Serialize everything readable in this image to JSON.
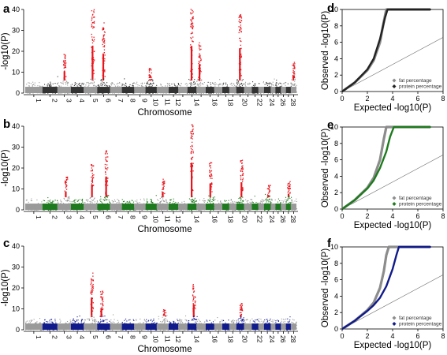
{
  "chart_data": [
    {
      "type": "scatter",
      "subtype": "manhattan",
      "panel": "a",
      "xlabel": "Chromosome",
      "ylabel": "-log10(P)",
      "ylim": [
        0,
        40
      ],
      "yticks": [
        0,
        10,
        20,
        30,
        40
      ],
      "chromosome_tick_labels": [
        "1",
        "2",
        "3",
        "4",
        "5",
        "6",
        "7",
        "8",
        "9",
        "10",
        "11",
        "12",
        "14",
        "16",
        "18",
        "20",
        "22",
        "24",
        "26",
        "28"
      ],
      "colors": {
        "odd": "#9a9a9a",
        "even": "#333333",
        "significant": "#e8141c"
      },
      "peaks": [
        {
          "chromosome": 3,
          "max": 19
        },
        {
          "chromosome": 5,
          "max": 41
        },
        {
          "chromosome": 6,
          "max": 34
        },
        {
          "chromosome": 10,
          "max": 12
        },
        {
          "chromosome": 14,
          "max": 41
        },
        {
          "chromosome": 15,
          "max": 25
        },
        {
          "chromosome": 20,
          "max": 39
        },
        {
          "chromosome": 29,
          "max": 15
        }
      ]
    },
    {
      "type": "scatter",
      "subtype": "manhattan",
      "panel": "b",
      "xlabel": "Chromosome",
      "ylabel": "-log10(P)",
      "ylim": [
        0,
        40
      ],
      "yticks": [
        0,
        10,
        20,
        30,
        40
      ],
      "chromosome_tick_labels": [
        "1",
        "2",
        "3",
        "4",
        "5",
        "6",
        "7",
        "8",
        "9",
        "10",
        "11",
        "12",
        "14",
        "16",
        "18",
        "20",
        "22",
        "24",
        "26",
        "28"
      ],
      "colors": {
        "odd": "#9a9a9a",
        "even": "#1e7a1e",
        "significant": "#e8141c"
      },
      "peaks": [
        {
          "chromosome": 3,
          "max": 16
        },
        {
          "chromosome": 5,
          "max": 22
        },
        {
          "chromosome": 6,
          "max": 29
        },
        {
          "chromosome": 11,
          "max": 15
        },
        {
          "chromosome": 14,
          "max": 41
        },
        {
          "chromosome": 16,
          "max": 23
        },
        {
          "chromosome": 20,
          "max": 24
        },
        {
          "chromosome": 24,
          "max": 12
        },
        {
          "chromosome": 28,
          "max": 14
        }
      ]
    },
    {
      "type": "scatter",
      "subtype": "manhattan",
      "panel": "c",
      "xlabel": "Chromosome",
      "ylabel": "-log10(P)",
      "ylim": [
        0,
        40
      ],
      "yticks": [
        0,
        10,
        20,
        30,
        40
      ],
      "chromosome_tick_labels": [
        "1",
        "2",
        "3",
        "4",
        "5",
        "6",
        "7",
        "8",
        "9",
        "10",
        "11",
        "12",
        "14",
        "16",
        "18",
        "20",
        "22",
        "24",
        "26",
        "28"
      ],
      "colors": {
        "odd": "#9a9a9a",
        "even": "#101a8a",
        "significant": "#e8141c"
      },
      "peaks": [
        {
          "chromosome": 5,
          "max": 28
        },
        {
          "chromosome": 6,
          "max": 19
        },
        {
          "chromosome": 11,
          "max": 10
        },
        {
          "chromosome": 14,
          "max": 22
        },
        {
          "chromosome": 20,
          "max": 13
        }
      ]
    },
    {
      "type": "line",
      "subtype": "qq",
      "panel": "d",
      "xlabel": "Expected -log10(P)",
      "ylabel": "Observed -log10(P)",
      "xlim": [
        0,
        8
      ],
      "ylim": [
        0,
        10
      ],
      "xticks": [
        0,
        2,
        4,
        6,
        8
      ],
      "yticks": [
        0,
        2,
        4,
        6,
        8,
        10
      ],
      "series": [
        {
          "name": "fat percentage",
          "color": "#8c8c8c",
          "x": [
            0,
            1,
            2,
            2.5,
            3,
            3.3,
            3.5,
            7
          ],
          "y": [
            0,
            1.1,
            2.6,
            3.8,
            6,
            8.5,
            10,
            10
          ]
        },
        {
          "name": "protein percentage",
          "color": "#222222",
          "x": [
            0,
            1,
            2,
            2.5,
            3,
            3.4,
            3.6,
            7
          ],
          "y": [
            0,
            1.1,
            2.7,
            4,
            6.4,
            9,
            10,
            10
          ]
        }
      ],
      "legend": [
        "fat percentage",
        "protein percentage"
      ]
    },
    {
      "type": "line",
      "subtype": "qq",
      "panel": "e",
      "xlabel": "Expected -log10(P)",
      "ylabel": "Observed -log10(P)",
      "xlim": [
        0,
        8
      ],
      "ylim": [
        0,
        10
      ],
      "xticks": [
        0,
        2,
        4,
        6,
        8
      ],
      "yticks": [
        0,
        2,
        4,
        6,
        8,
        10
      ],
      "series": [
        {
          "name": "fat percentage",
          "color": "#8c8c8c",
          "x": [
            0,
            1,
            2,
            2.5,
            3,
            3.3,
            3.5,
            7
          ],
          "y": [
            0,
            1.1,
            2.6,
            3.8,
            6,
            8.5,
            10,
            10
          ]
        },
        {
          "name": "protein percentage",
          "color": "#1e7a1e",
          "x": [
            0,
            1,
            2,
            2.5,
            3,
            3.5,
            3.8,
            4.1,
            7
          ],
          "y": [
            0,
            1.1,
            2.5,
            3.5,
            5,
            7,
            8.8,
            10,
            10
          ]
        }
      ],
      "legend": [
        "fat percentage",
        "protein percentage"
      ]
    },
    {
      "type": "line",
      "subtype": "qq",
      "panel": "f",
      "xlabel": "Expected -log10(P)",
      "ylabel": "Observed -log10(P)",
      "xlim": [
        0,
        8
      ],
      "ylim": [
        0,
        10
      ],
      "xticks": [
        0,
        2,
        4,
        6,
        8
      ],
      "yticks": [
        0,
        2,
        4,
        6,
        8,
        10
      ],
      "series": [
        {
          "name": "fat percentage",
          "color": "#8c8c8c",
          "x": [
            0,
            1,
            2,
            2.5,
            3,
            3.3,
            3.5,
            3.7,
            7
          ],
          "y": [
            0,
            1,
            2.3,
            3.2,
            5,
            7,
            9,
            10,
            10
          ]
        },
        {
          "name": "protein percentage",
          "color": "#101a8a",
          "x": [
            0,
            1,
            2,
            2.5,
            3,
            3.5,
            4,
            4.3,
            4.5,
            7
          ],
          "y": [
            0,
            1,
            2.2,
            2.9,
            3.8,
            5.2,
            7.3,
            9,
            10,
            10
          ]
        }
      ],
      "legend": [
        "fat percentage",
        "protein percentage"
      ]
    }
  ]
}
